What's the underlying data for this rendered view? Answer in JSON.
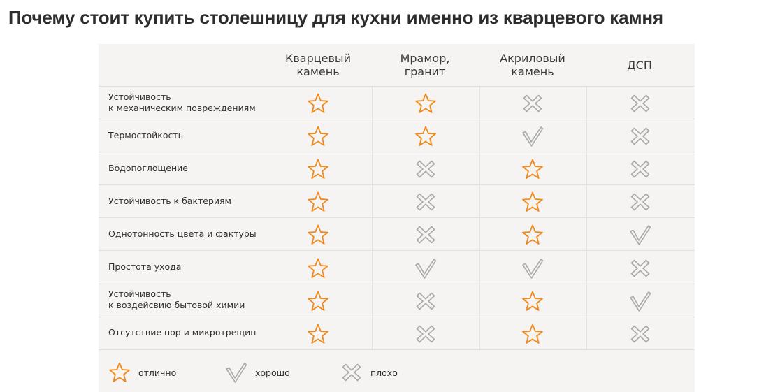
{
  "page": {
    "title": "Почему стоит купить столешницу для кухни именно из кварцевого камня"
  },
  "table": {
    "columns": [
      {
        "label": "Кварцевый\nкамень"
      },
      {
        "label": "Мрамор,\nгранит"
      },
      {
        "label": "Акриловый\nкамень"
      },
      {
        "label": "ДСП"
      }
    ],
    "rows": [
      {
        "label": "Устойчивость\nк механическим повреждениям",
        "ratings": [
          "star",
          "star",
          "cross",
          "cross"
        ]
      },
      {
        "label": "Термостойкость",
        "ratings": [
          "star",
          "star",
          "check",
          "cross"
        ]
      },
      {
        "label": "Водопоглощение",
        "ratings": [
          "star",
          "cross",
          "star",
          "cross"
        ]
      },
      {
        "label": "Устойчивость к бактериям",
        "ratings": [
          "star",
          "cross",
          "star",
          "cross"
        ]
      },
      {
        "label": "Однотонность цвета и фактуры",
        "ratings": [
          "star",
          "cross",
          "star",
          "check"
        ]
      },
      {
        "label": "Простота ухода",
        "ratings": [
          "star",
          "check",
          "check",
          "cross"
        ]
      },
      {
        "label": "Устойчивость\nк воздейсвию бытовой химии",
        "ratings": [
          "star",
          "cross",
          "star",
          "check"
        ]
      },
      {
        "label": "Отсутствие пор и микротрещин",
        "ratings": [
          "star",
          "cross",
          "star",
          "cross"
        ]
      }
    ]
  },
  "legend": {
    "items": [
      {
        "icon": "star",
        "label": "отлично"
      },
      {
        "icon": "check",
        "label": "хорошо"
      },
      {
        "icon": "cross",
        "label": "плохо"
      }
    ]
  },
  "colors": {
    "star": "#f08a1c",
    "mark": "#a9a9a9",
    "panel_bg": "#f5f4f2"
  }
}
